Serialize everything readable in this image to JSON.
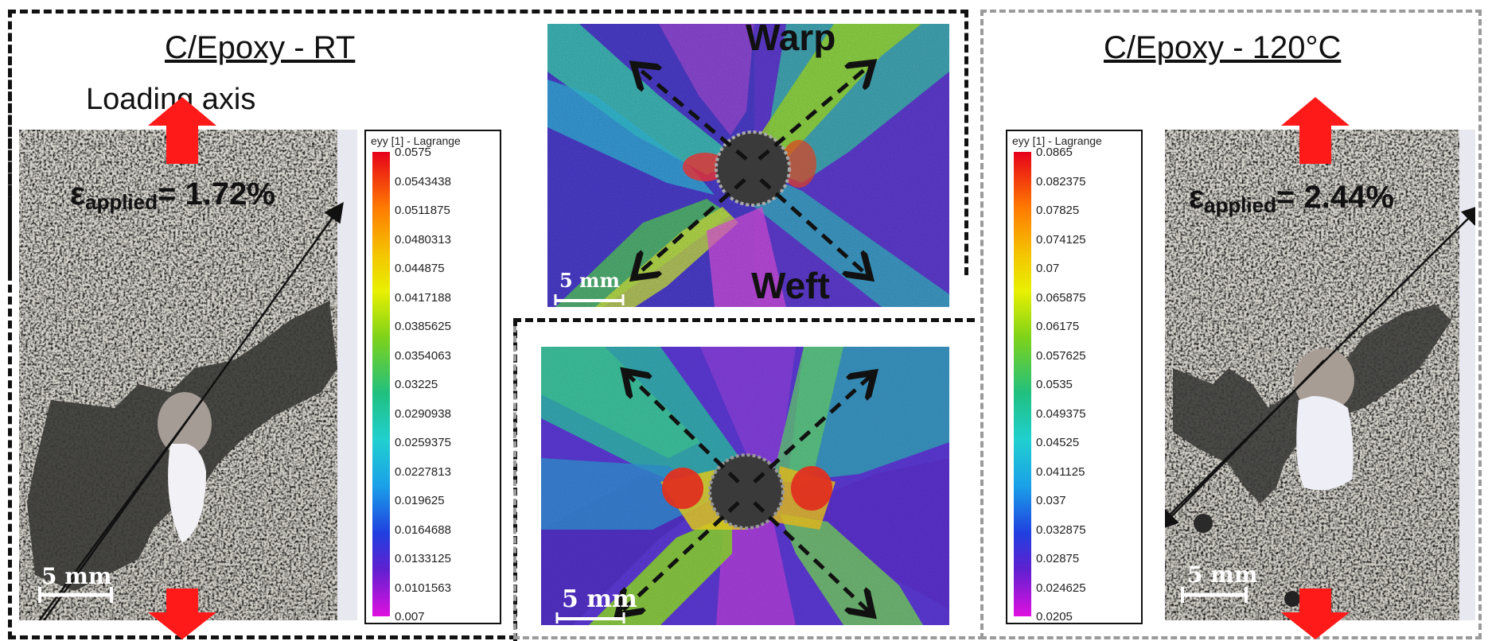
{
  "left_panel": {
    "title": "C/Epoxy - RT",
    "loading_label": "Loading axis",
    "strain_symbol": "ε",
    "strain_subscript": "applied",
    "strain_value": "= 1.72%",
    "scale_label": "5 mm"
  },
  "right_panel": {
    "title": "C/Epoxy - 120°C",
    "strain_symbol": "ε",
    "strain_subscript": "applied",
    "strain_value": "= 2.44%",
    "scale_label": "5 mm"
  },
  "dic_top": {
    "warp_label": "Warp",
    "weft_label": "Weft",
    "scale_label": "5 mm"
  },
  "dic_bottom": {
    "scale_label": "5 mm"
  },
  "colorbar_left": {
    "title": "eyy [1] - Lagrange",
    "ticks": [
      "0.0575",
      "0.0543438",
      "0.0511875",
      "0.0480313",
      "0.044875",
      "0.0417188",
      "0.0385625",
      "0.0354063",
      "0.03225",
      "0.0290938",
      "0.0259375",
      "0.0227813",
      "0.019625",
      "0.0164688",
      "0.0133125",
      "0.0101563",
      "0.007"
    ]
  },
  "colorbar_right": {
    "title": "eyy [1] - Lagrange",
    "ticks": [
      "0.0865",
      "0.082375",
      "0.07825",
      "0.074125",
      "0.07",
      "0.065875",
      "0.06175",
      "0.057625",
      "0.0535",
      "0.049375",
      "0.04525",
      "0.041125",
      "0.037",
      "0.032875",
      "0.02875",
      "0.024625",
      "0.0205"
    ]
  },
  "colors": {
    "load_arrow": "#ff1a1a",
    "frame_black": "#111111",
    "frame_grey": "#9a9a9a"
  }
}
